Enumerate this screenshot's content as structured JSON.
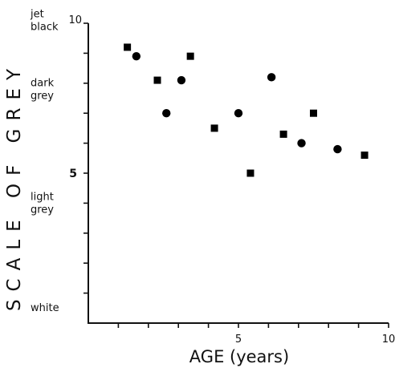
{
  "chart_data": {
    "type": "scatter",
    "title": "",
    "xlabel": "AGE (years)",
    "ylabel": "SCALE OF GREY",
    "xlim": [
      0,
      10
    ],
    "ylim": [
      0,
      10
    ],
    "x_ticks": [
      1,
      2,
      3,
      4,
      5,
      6,
      7,
      8,
      9,
      10
    ],
    "x_tick_labels": [
      {
        "value": 5,
        "label": "5"
      },
      {
        "value": 10,
        "label": "10"
      }
    ],
    "y_ticks": [
      1,
      2,
      3,
      4,
      5,
      6,
      7,
      8,
      9,
      10
    ],
    "y_tick_labels": [
      {
        "value": 5,
        "label": "5"
      },
      {
        "value": 10,
        "label": "10"
      }
    ],
    "y_category_labels": [
      {
        "value": 10.2,
        "lines": [
          "jet",
          "black"
        ]
      },
      {
        "value": 7.9,
        "lines": [
          "dark",
          "grey"
        ]
      },
      {
        "value": 4.1,
        "lines": [
          "light",
          "grey"
        ]
      },
      {
        "value": 0.4,
        "lines": [
          "white"
        ]
      }
    ],
    "grid": false,
    "series": [
      {
        "marker": "square",
        "points": [
          {
            "x": 1.3,
            "y": 9.2
          },
          {
            "x": 2.3,
            "y": 8.1
          },
          {
            "x": 3.4,
            "y": 8.9
          },
          {
            "x": 4.2,
            "y": 6.5
          },
          {
            "x": 5.4,
            "y": 5.0
          },
          {
            "x": 6.5,
            "y": 6.3
          },
          {
            "x": 7.5,
            "y": 7.0
          },
          {
            "x": 9.2,
            "y": 5.6
          }
        ]
      },
      {
        "marker": "circle",
        "points": [
          {
            "x": 1.6,
            "y": 8.9
          },
          {
            "x": 2.6,
            "y": 7.0
          },
          {
            "x": 3.1,
            "y": 8.1
          },
          {
            "x": 5.0,
            "y": 7.0
          },
          {
            "x": 6.1,
            "y": 8.2
          },
          {
            "x": 7.1,
            "y": 6.0
          },
          {
            "x": 8.3,
            "y": 5.8
          }
        ]
      }
    ]
  }
}
